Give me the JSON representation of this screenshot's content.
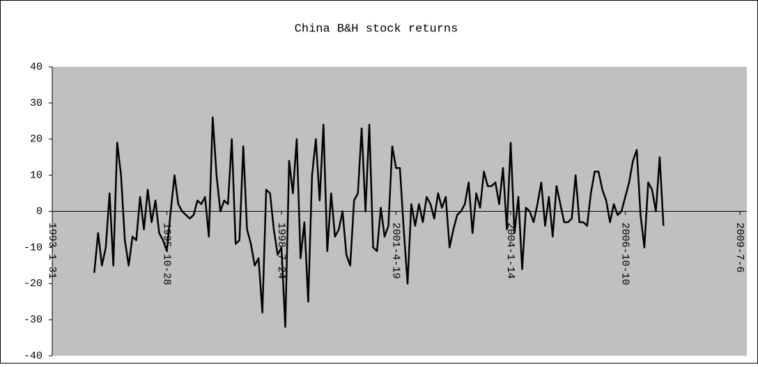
{
  "chart_data": {
    "type": "line",
    "title": "China B&H stock returns",
    "categories": [
      "1993-1-31",
      null,
      null,
      null,
      null,
      null,
      null,
      null,
      null,
      null,
      null,
      null,
      null,
      null,
      null,
      null,
      null,
      null,
      null,
      null,
      null,
      null,
      null,
      null,
      null,
      null,
      null,
      null,
      null,
      null,
      "1995-10-28",
      null,
      null,
      null,
      null,
      null,
      null,
      null,
      null,
      null,
      null,
      null,
      null,
      null,
      null,
      null,
      null,
      null,
      null,
      null,
      null,
      null,
      null,
      null,
      null,
      null,
      null,
      null,
      null,
      null,
      "1998-7-24",
      null,
      null,
      null,
      null,
      null,
      null,
      null,
      null,
      null,
      null,
      null,
      null,
      null,
      null,
      null,
      null,
      null,
      null,
      null,
      null,
      null,
      null,
      null,
      null,
      null,
      null,
      null,
      null,
      null,
      "2001-4-19",
      null,
      null,
      null,
      null,
      null,
      null,
      null,
      null,
      null,
      null,
      null,
      null,
      null,
      null,
      null,
      null,
      null,
      null,
      null,
      null,
      null,
      null,
      null,
      null,
      null,
      null,
      null,
      null,
      null,
      "2004-1-14",
      null,
      null,
      null,
      null,
      null,
      null,
      null,
      null,
      null,
      null,
      null,
      null,
      null,
      null,
      null,
      null,
      null,
      null,
      null,
      null,
      null,
      null,
      null,
      null,
      null,
      null,
      null,
      null,
      null,
      "2006-10-10",
      null,
      null,
      null,
      null,
      null,
      null,
      null,
      null,
      null,
      null,
      null,
      null,
      null,
      null,
      null,
      null,
      null,
      null,
      null,
      null,
      null,
      null,
      null,
      null,
      null,
      null,
      null,
      null,
      null,
      "2009-7-6"
    ],
    "series": [
      {
        "color": "#000000",
        "values": [
          null,
          null,
          null,
          null,
          null,
          null,
          null,
          null,
          null,
          null,
          null,
          -17,
          -6,
          -15,
          -10,
          5,
          -15,
          19,
          10,
          -8,
          -15,
          -7,
          -8,
          4,
          -5,
          6,
          -3,
          3,
          -6,
          -8,
          -11,
          0,
          10,
          2,
          0,
          -1,
          -2,
          -1,
          3,
          2,
          4,
          -7,
          26,
          10,
          0,
          3,
          2,
          20,
          -9,
          -8,
          18,
          -5,
          -9,
          -15,
          -13,
          -28,
          6,
          5,
          -5,
          -12,
          -10,
          -32,
          14,
          5,
          20,
          -13,
          -3,
          -25,
          10,
          20,
          3,
          24,
          -11,
          5,
          -7,
          -5,
          0,
          -12,
          -15,
          3,
          5,
          23,
          0,
          24,
          -10,
          -11,
          1,
          -7,
          -4,
          18,
          12,
          12,
          -5,
          -20,
          2,
          -4,
          2,
          -3,
          4,
          2,
          -2,
          5,
          1,
          4,
          -10,
          -5,
          -1,
          0,
          2,
          8,
          -6,
          5,
          1,
          11,
          7,
          7,
          8,
          2,
          12,
          -5,
          19,
          -6,
          4,
          -16,
          1,
          0,
          -3,
          2,
          8,
          -4,
          4,
          -7,
          7,
          2,
          -3,
          -3,
          -2,
          10,
          -3,
          -3,
          -4,
          5,
          11,
          11,
          6,
          3,
          -3,
          2,
          -1,
          0,
          4,
          8,
          14,
          17,
          -1,
          -10,
          8,
          6,
          0,
          15,
          -4,
          null,
          null,
          null,
          null,
          null,
          null,
          null,
          null,
          null,
          null,
          null,
          null,
          null,
          null,
          null,
          null,
          null,
          null,
          null,
          null
        ]
      }
    ],
    "ylim": [
      -40,
      40
    ],
    "yticks": [
      -40,
      -30,
      -20,
      -10,
      0,
      10,
      20,
      30,
      40
    ],
    "plot_background": "#c0c0c0"
  }
}
